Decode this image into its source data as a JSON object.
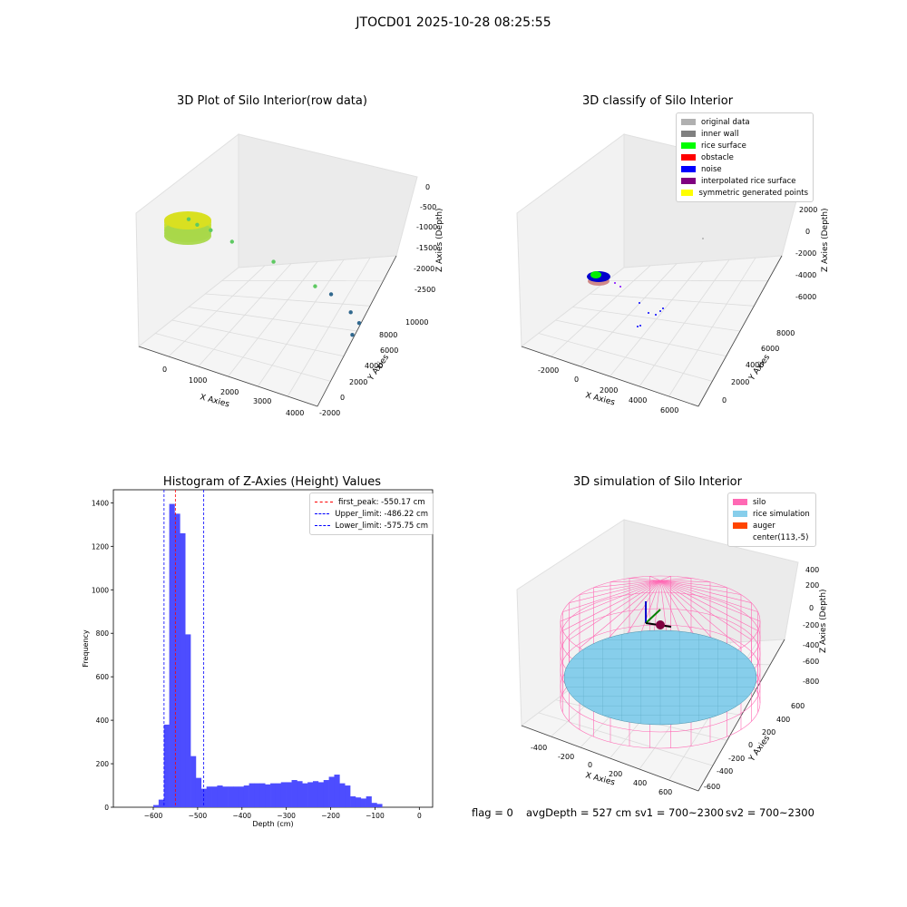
{
  "suptitle": "JTOCD01 2025-10-28 08:25:55",
  "footer": {
    "flag": "flag = 0",
    "avg_depth": "avgDepth = 527 cm",
    "sv1": "sv1 = 700~2300",
    "sv2": "sv2 = 700~2300"
  },
  "chart_data": [
    {
      "type": "scatter",
      "title": "3D Plot of Silo Interior(row data)",
      "xlabel": "X Axies",
      "ylabel": "Y Axies",
      "zlabel": "Z Axies (Depth)",
      "x_ticks": [
        "0",
        "1000",
        "2000",
        "3000",
        "4000"
      ],
      "y_ticks": [
        "-2000",
        "0",
        "2000",
        "4000",
        "6000",
        "8000",
        "10000"
      ],
      "z_ticks": [
        "0",
        "-500",
        "-1000",
        "-1500",
        "-2000",
        "-2500"
      ],
      "xlim": [
        -700,
        4500
      ],
      "ylim": [
        -2200,
        10500
      ],
      "zlim": [
        -2900,
        100
      ],
      "colors": {
        "dense": "#d9e021",
        "outlier_green": "#5ec962",
        "outlier_blue": "#31688e"
      },
      "points": [
        {
          "x": 300,
          "y": 100,
          "z": -100
        },
        {
          "x": 500,
          "y": 300,
          "z": -200
        },
        {
          "x": 800,
          "y": 700,
          "z": -300
        },
        {
          "x": 1300,
          "y": 1200,
          "z": -500
        },
        {
          "x": 2200,
          "y": 2500,
          "z": -900
        },
        {
          "x": 3100,
          "y": 3800,
          "z": -1400
        },
        {
          "x": 3400,
          "y": 4500,
          "z": -1600
        },
        {
          "x": 3800,
          "y": 5200,
          "z": -2000
        },
        {
          "x": 3900,
          "y": 5800,
          "z": -2300
        },
        {
          "x": 3600,
          "y": 6200,
          "z": -2700
        }
      ]
    },
    {
      "type": "scatter",
      "title": "3D classify of Silo Interior",
      "xlabel": "X Axies",
      "ylabel": "Y Axies",
      "zlabel": "Z Axies (Depth)",
      "x_ticks": [
        "-2000",
        "0",
        "2000",
        "4000",
        "6000"
      ],
      "y_ticks": [
        "0",
        "2000",
        "4000",
        "6000",
        "8000"
      ],
      "z_ticks": [
        "2000",
        "0",
        "-2000",
        "-4000",
        "-6000"
      ],
      "legend": [
        {
          "label": "original data",
          "color": "#b0b0b0"
        },
        {
          "label": "inner wall",
          "color": "#808080"
        },
        {
          "label": "rice surface",
          "color": "#00ff00"
        },
        {
          "label": "obstacle",
          "color": "#ff0000"
        },
        {
          "label": "noise",
          "color": "#0000ff"
        },
        {
          "label": "interpolated rice surface",
          "color": "#800080"
        },
        {
          "label": "symmetric generated points",
          "color": "#ffff00"
        }
      ]
    },
    {
      "type": "bar",
      "title": "Histogram of Z-Axies (Height) Values",
      "xlabel": "Depth (cm)",
      "ylabel": "Frequency",
      "xlim": [
        -690,
        30
      ],
      "ylim": [
        0,
        1460
      ],
      "x_ticks": [
        -600,
        -500,
        -400,
        -300,
        -200,
        -100,
        0
      ],
      "y_ticks": [
        0,
        200,
        400,
        600,
        800,
        1000,
        1200,
        1400
      ],
      "bin_start": -600,
      "bin_width": 12,
      "values": [
        10,
        35,
        380,
        1395,
        1350,
        1260,
        795,
        235,
        135,
        85,
        95,
        95,
        100,
        95,
        95,
        95,
        95,
        100,
        110,
        110,
        110,
        105,
        110,
        110,
        115,
        115,
        125,
        120,
        110,
        115,
        120,
        115,
        125,
        140,
        150,
        110,
        100,
        50,
        45,
        40,
        50,
        20,
        15
      ],
      "bar_color": "#4d4dff",
      "lines": [
        {
          "label": "first_peak: -550.17 cm",
          "value": -550.17,
          "color": "#ff0000"
        },
        {
          "label": "Upper_limit: -486.22 cm",
          "value": -486.22,
          "color": "#0000ff"
        },
        {
          "label": "Lower_limit: -575.75 cm",
          "value": -575.75,
          "color": "#0000ff"
        }
      ]
    },
    {
      "type": "scatter",
      "title": "3D simulation of Silo Interior",
      "xlabel": "X Axies",
      "ylabel": "Y Axies",
      "zlabel": "Z Axies (Depth)",
      "x_ticks": [
        "-400",
        "-200",
        "0",
        "200",
        "400",
        "600"
      ],
      "y_ticks": [
        "-600",
        "-400",
        "-200",
        "0",
        "200",
        "400",
        "600"
      ],
      "z_ticks": [
        "400",
        "200",
        "0",
        "-200",
        "-400",
        "-600",
        "-800"
      ],
      "legend": [
        {
          "label": "silo",
          "color": "#ff69b4"
        },
        {
          "label": "rice simulation",
          "color": "#87ceeb"
        },
        {
          "label": "auger",
          "color": "#ff4500"
        },
        {
          "label": "center(113,-5)",
          "color": "#ffffff"
        }
      ]
    }
  ]
}
